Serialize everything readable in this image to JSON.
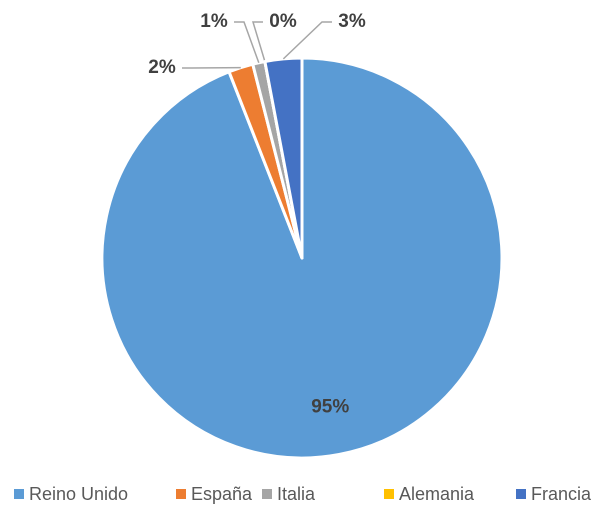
{
  "chart_data": {
    "type": "pie",
    "categories": [
      "Reino Unido",
      "España",
      "Italia",
      "Alemania",
      "Francia"
    ],
    "values": [
      95,
      2,
      1,
      0,
      3
    ],
    "value_labels": [
      "95%",
      "2%",
      "1%",
      "0%",
      "3%"
    ],
    "colors": [
      "#5b9bd5",
      "#ed7d31",
      "#a5a5a5",
      "#ffc000",
      "#4472c4"
    ],
    "legend": "bottom"
  }
}
